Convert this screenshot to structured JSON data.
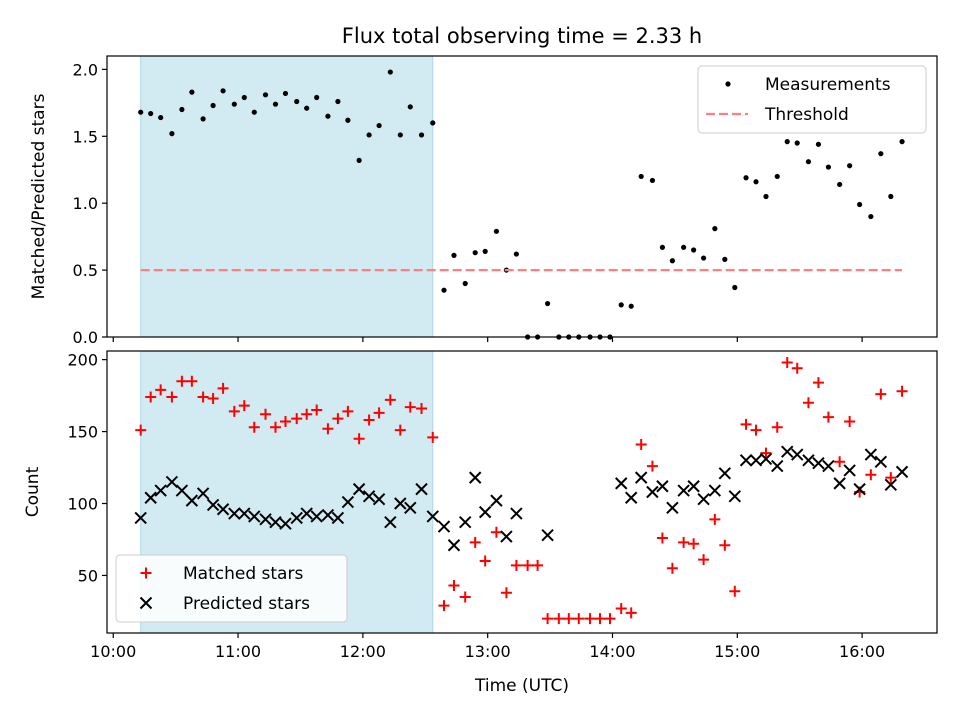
{
  "chart_data": {
    "title": "Flux total observing time = 2.33 h",
    "xlabel": "Time (UTC)",
    "xlim_hours": [
      9.95,
      16.6
    ],
    "x_ticks": [
      "10:00",
      "11:00",
      "12:00",
      "13:00",
      "14:00",
      "15:00",
      "16:00"
    ],
    "shaded_region_hours": [
      10.22,
      12.56
    ],
    "shaded_color": "#add8e6",
    "panels": [
      {
        "type": "scatter",
        "ylabel": "Matched/Predicted stars",
        "ylim": [
          0,
          2.1
        ],
        "y_ticks": [
          "0.0",
          "0.5",
          "1.0",
          "1.5",
          "2.0"
        ],
        "legend_position": "top-right",
        "series": [
          {
            "name": "Measurements",
            "marker": "dot",
            "color": "#000000",
            "x": [
              10.22,
              10.3,
              10.38,
              10.47,
              10.55,
              10.63,
              10.72,
              10.8,
              10.88,
              10.97,
              11.05,
              11.13,
              11.22,
              11.3,
              11.38,
              11.47,
              11.55,
              11.63,
              11.72,
              11.8,
              11.88,
              11.97,
              12.05,
              12.13,
              12.22,
              12.3,
              12.38,
              12.47,
              12.56,
              12.65,
              12.73,
              12.82,
              12.9,
              12.98,
              13.07,
              13.15,
              13.23,
              13.32,
              13.4,
              13.48,
              13.57,
              13.65,
              13.73,
              13.82,
              13.9,
              13.98,
              14.07,
              14.15,
              14.23,
              14.32,
              14.4,
              14.48,
              14.57,
              14.65,
              14.73,
              14.82,
              14.9,
              14.98,
              15.07,
              15.15,
              15.23,
              15.32,
              15.4,
              15.48,
              15.57,
              15.65,
              15.73,
              15.82,
              15.9,
              15.98,
              16.07,
              16.15,
              16.23,
              16.32
            ],
            "values": [
              1.68,
              1.67,
              1.64,
              1.52,
              1.7,
              1.83,
              1.63,
              1.73,
              1.84,
              1.74,
              1.79,
              1.68,
              1.81,
              1.74,
              1.82,
              1.76,
              1.71,
              1.79,
              1.65,
              1.76,
              1.62,
              1.32,
              1.51,
              1.58,
              1.98,
              1.51,
              1.72,
              1.51,
              1.6,
              0.35,
              0.61,
              0.4,
              0.63,
              0.64,
              0.79,
              0.5,
              0.62,
              0.0,
              0.0,
              0.25,
              0.0,
              0.0,
              0.0,
              0.0,
              0.0,
              0.0,
              0.24,
              0.23,
              1.2,
              1.17,
              0.67,
              0.57,
              0.67,
              0.65,
              0.59,
              0.81,
              0.58,
              0.37,
              1.19,
              1.16,
              1.05,
              1.2,
              1.46,
              1.45,
              1.31,
              1.44,
              1.27,
              1.14,
              1.28,
              0.99,
              0.9,
              1.37,
              1.05,
              1.46
            ]
          },
          {
            "name": "Threshold",
            "marker": "dashed-line",
            "color": "#ff7f7f",
            "x": [
              10.22,
              16.32
            ],
            "values": [
              0.5,
              0.5
            ]
          }
        ]
      },
      {
        "type": "scatter",
        "ylabel": "Count",
        "ylim": [
          10,
          206
        ],
        "y_ticks": [
          "50",
          "100",
          "150",
          "200"
        ],
        "legend_position": "bottom-left",
        "series": [
          {
            "name": "Matched stars",
            "marker": "plus",
            "color": "#ff0000",
            "x": [
              10.22,
              10.3,
              10.38,
              10.47,
              10.55,
              10.63,
              10.72,
              10.8,
              10.88,
              10.97,
              11.05,
              11.13,
              11.22,
              11.3,
              11.38,
              11.47,
              11.55,
              11.63,
              11.72,
              11.8,
              11.88,
              11.97,
              12.05,
              12.13,
              12.22,
              12.3,
              12.38,
              12.47,
              12.56,
              12.65,
              12.73,
              12.82,
              12.9,
              12.98,
              13.07,
              13.15,
              13.23,
              13.32,
              13.4,
              13.48,
              13.57,
              13.65,
              13.73,
              13.82,
              13.9,
              13.98,
              14.07,
              14.15,
              14.23,
              14.32,
              14.4,
              14.48,
              14.57,
              14.65,
              14.73,
              14.82,
              14.9,
              14.98,
              15.07,
              15.15,
              15.23,
              15.32,
              15.4,
              15.48,
              15.57,
              15.65,
              15.73,
              15.82,
              15.9,
              15.98,
              16.07,
              16.15,
              16.23,
              16.32
            ],
            "values": [
              151,
              174,
              179,
              174,
              185,
              185,
              174,
              173,
              180,
              164,
              168,
              153,
              162,
              153,
              157,
              159,
              162,
              165,
              152,
              159,
              164,
              145,
              158,
              163,
              172,
              151,
              167,
              166,
              146,
              29,
              43,
              35,
              73,
              60,
              80,
              38,
              57,
              57,
              57,
              20,
              20,
              20,
              20,
              20,
              20,
              20,
              27,
              24,
              141,
              126,
              76,
              55,
              73,
              72,
              61,
              89,
              71,
              39,
              155,
              151,
              135,
              153,
              198,
              194,
              170,
              184,
              160,
              129,
              157,
              108,
              120,
              176,
              118,
              178
            ]
          },
          {
            "name": "Predicted stars",
            "marker": "x",
            "color": "#000000",
            "x": [
              10.22,
              10.3,
              10.38,
              10.47,
              10.55,
              10.63,
              10.72,
              10.8,
              10.88,
              10.97,
              11.05,
              11.13,
              11.22,
              11.3,
              11.38,
              11.47,
              11.55,
              11.63,
              11.72,
              11.8,
              11.88,
              11.97,
              12.05,
              12.13,
              12.22,
              12.3,
              12.38,
              12.47,
              12.56,
              12.65,
              12.73,
              12.82,
              12.9,
              12.98,
              13.07,
              13.15,
              13.23,
              13.48,
              14.07,
              14.15,
              14.23,
              14.32,
              14.4,
              14.48,
              14.57,
              14.65,
              14.73,
              14.82,
              14.9,
              14.98,
              15.07,
              15.15,
              15.23,
              15.32,
              15.4,
              15.48,
              15.57,
              15.65,
              15.73,
              15.82,
              15.9,
              15.98,
              16.07,
              16.15,
              16.23,
              16.32
            ],
            "values": [
              90,
              104,
              109,
              115,
              109,
              102,
              107,
              99,
              96,
              93,
              93,
              91,
              89,
              87,
              86,
              90,
              93,
              91,
              92,
              90,
              101,
              110,
              105,
              103,
              87,
              100,
              97,
              110,
              91,
              84,
              71,
              87,
              118,
              94,
              102,
              77,
              93,
              78,
              114,
              104,
              118,
              108,
              112,
              97,
              109,
              112,
              103,
              109,
              121,
              105,
              130,
              130,
              131,
              126,
              136,
              134,
              130,
              128,
              126,
              114,
              123,
              110,
              134,
              129,
              113,
              122
            ]
          }
        ]
      }
    ]
  }
}
